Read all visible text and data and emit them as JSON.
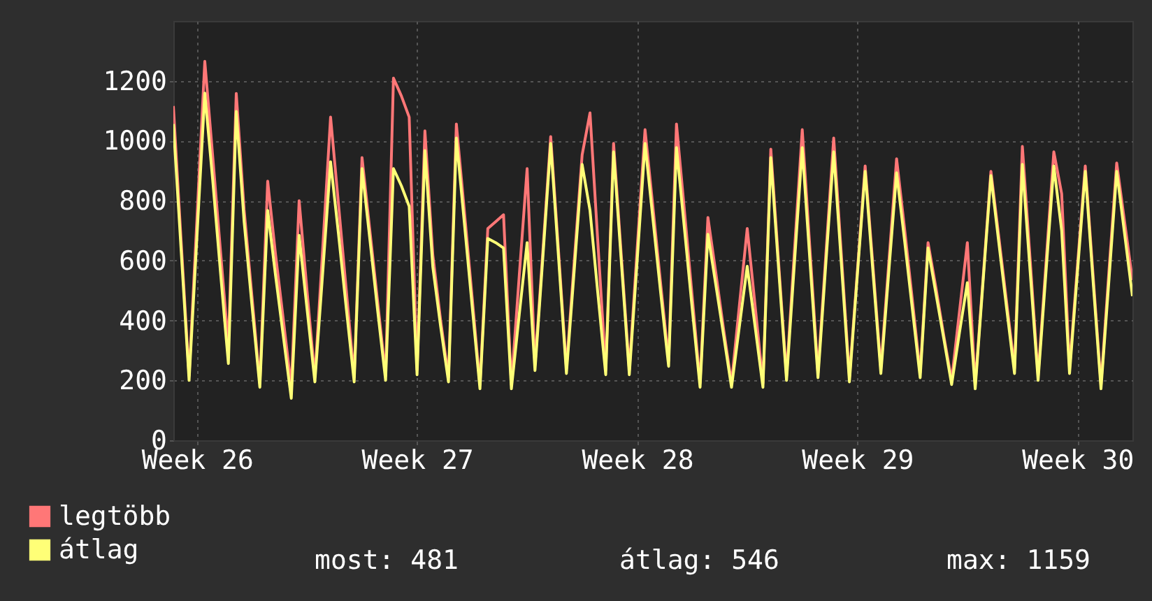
{
  "chart_data": {
    "type": "line",
    "categories": [
      null,
      null,
      null,
      "Week 26",
      null,
      null,
      null,
      null,
      null,
      null,
      null,
      null,
      null,
      null,
      null,
      null,
      null,
      null,
      null,
      null,
      null,
      null,
      null,
      null,
      null,
      null,
      null,
      null,
      null,
      null,
      null,
      "Week 27",
      null,
      null,
      null,
      null,
      null,
      null,
      null,
      null,
      null,
      null,
      null,
      null,
      null,
      null,
      null,
      null,
      null,
      null,
      null,
      null,
      null,
      null,
      null,
      null,
      null,
      null,
      null,
      "Week 28",
      null,
      null,
      null,
      null,
      null,
      null,
      null,
      null,
      null,
      null,
      null,
      null,
      null,
      null,
      null,
      null,
      null,
      null,
      null,
      null,
      null,
      null,
      null,
      null,
      null,
      null,
      null,
      "Week 29",
      null,
      null,
      null,
      null,
      null,
      null,
      null,
      null,
      null,
      null,
      null,
      null,
      null,
      null,
      null,
      null,
      null,
      null,
      null,
      null,
      null,
      null,
      null,
      null,
      null,
      null,
      null,
      "Week 30",
      null,
      null,
      null,
      null,
      null,
      null,
      null
    ],
    "series": [
      {
        "name": "legtöbb",
        "color": "#ff7777",
        "values": [
          1116,
          660,
          215,
          740,
          1265,
          950,
          630,
          316,
          1158,
          770,
          480,
          190,
          865,
          620,
          400,
          177,
          800,
          500,
          210,
          640,
          1079,
          790,
          500,
          210,
          944,
          700,
          460,
          215,
          1209,
          1150,
          1079,
          235,
          1033,
          620,
          400,
          210,
          1056,
          770,
          480,
          185,
          707,
          730,
          753,
          185,
          550,
          907,
          250,
          630,
          1014,
          630,
          240,
          600,
          953,
          1093,
          660,
          235,
          991,
          610,
          235,
          640,
          1037,
          780,
          520,
          265,
          1056,
          770,
          480,
          190,
          744,
          560,
          370,
          190,
          450,
          707,
          450,
          190,
          972,
          590,
          215,
          630,
          1037,
          630,
          225,
          620,
          1009,
          610,
          210,
          560,
          916,
          580,
          240,
          590,
          940,
          710,
          470,
          225,
          660,
          510,
          350,
          200,
          430,
          660,
          185,
          540,
          898,
          680,
          460,
          240,
          981,
          600,
          215,
          590,
          963,
          823,
          240,
          580,
          916,
          550,
          185,
          560,
          926,
          730,
          535
        ]
      },
      {
        "name": "átlag",
        "color": "#ffff77",
        "values": [
          1056,
          630,
          200,
          680,
          1159,
          870,
          560,
          256,
          1098,
          730,
          450,
          177,
          767,
          550,
          345,
          140,
          684,
          440,
          195,
          560,
          930,
          690,
          440,
          195,
          907,
          670,
          430,
          200,
          907,
          850,
          781,
          219,
          967,
          580,
          380,
          195,
          1009,
          730,
          450,
          172,
          674,
          660,
          642,
          172,
          420,
          660,
          233,
          610,
          991,
          610,
          223,
          570,
          921,
          767,
          490,
          219,
          963,
          590,
          219,
          600,
          991,
          740,
          490,
          247,
          977,
          710,
          440,
          177,
          688,
          520,
          350,
          177,
          380,
          581,
          380,
          177,
          944,
          570,
          200,
          590,
          977,
          590,
          209,
          590,
          963,
          580,
          195,
          550,
          898,
          560,
          223,
          560,
          893,
          670,
          440,
          209,
          642,
          490,
          340,
          186,
          360,
          526,
          172,
          530,
          884,
          660,
          440,
          223,
          921,
          560,
          200,
          560,
          916,
          700,
          223,
          560,
          898,
          530,
          172,
          530,
          898,
          690,
          481
        ]
      }
    ],
    "ylim": [
      0,
      1400
    ],
    "yticks": [
      0,
      200,
      400,
      600,
      800,
      1000,
      1200
    ],
    "grid": true,
    "legend": "bottom left",
    "marker": "none",
    "line_style": "solid",
    "annotations": [
      "most: 481",
      "átlag: 546",
      "max: 1159"
    ]
  }
}
